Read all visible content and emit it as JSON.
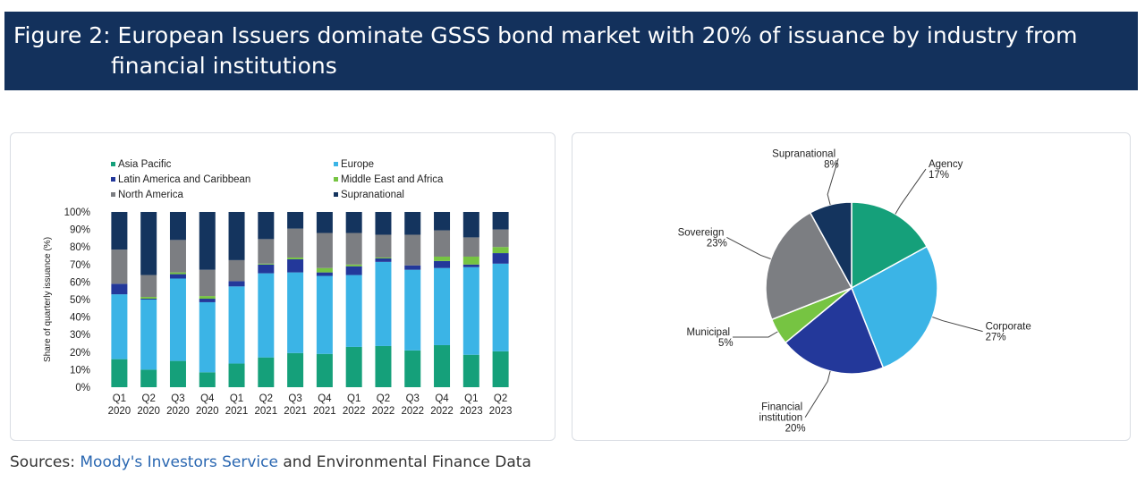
{
  "header": {
    "title_line1": "Figure 2: European Issuers dominate GSSS bond market with 20% of issuance by industry from",
    "title_line2": "financial institutions"
  },
  "sources": {
    "prefix": "Sources: ",
    "link": "Moody's Investors Service",
    "suffix": " and Environmental Finance Data"
  },
  "colors": {
    "asia_pacific": "#15a07a",
    "europe": "#3bb4e6",
    "latin_america": "#23389a",
    "middle_east_africa": "#76c442",
    "north_america": "#7c7e82",
    "supranational": "#14345e",
    "banner": "#13315c"
  },
  "chart_data": [
    {
      "type": "bar",
      "stacked": true,
      "xlabel": "",
      "ylabel": "Share of quarterly issuance (%)",
      "ylim": [
        0,
        100
      ],
      "y_ticks": [
        "0%",
        "10%",
        "20%",
        "30%",
        "40%",
        "50%",
        "60%",
        "70%",
        "80%",
        "90%",
        "100%"
      ],
      "legend_position": "top",
      "categories": [
        [
          "Q1",
          "2020"
        ],
        [
          "Q2",
          "2020"
        ],
        [
          "Q3",
          "2020"
        ],
        [
          "Q4",
          "2020"
        ],
        [
          "Q1",
          "2021"
        ],
        [
          "Q2",
          "2021"
        ],
        [
          "Q3",
          "2021"
        ],
        [
          "Q4",
          "2021"
        ],
        [
          "Q1",
          "2022"
        ],
        [
          "Q2",
          "2022"
        ],
        [
          "Q3",
          "2022"
        ],
        [
          "Q4",
          "2022"
        ],
        [
          "Q1",
          "2023"
        ],
        [
          "Q2",
          "2023"
        ]
      ],
      "series": [
        {
          "name": "Asia Pacific",
          "color": "#15a07a",
          "values": [
            16,
            10,
            15,
            8.5,
            13.5,
            17,
            19.5,
            19,
            23,
            23.5,
            21,
            24,
            18.5,
            20.5
          ]
        },
        {
          "name": "Europe",
          "color": "#3bb4e6",
          "values": [
            37,
            40,
            47,
            40,
            44,
            48,
            46,
            44.5,
            41,
            48,
            46,
            44,
            50,
            50
          ]
        },
        {
          "name": "Latin America and Caribbean",
          "color": "#23389a",
          "values": [
            6,
            0.5,
            2.5,
            2,
            3,
            5,
            7.5,
            2,
            5,
            2,
            2.5,
            4,
            1.5,
            6
          ]
        },
        {
          "name": "Middle East and Africa",
          "color": "#76c442",
          "values": [
            0,
            1,
            1,
            1.5,
            0,
            0.5,
            1,
            2.5,
            1,
            0.5,
            0,
            2.5,
            4.5,
            3.5
          ]
        },
        {
          "name": "North America",
          "color": "#7c7e82",
          "values": [
            19.5,
            12.5,
            18.5,
            15,
            12,
            14,
            16.5,
            20,
            18,
            13,
            17.5,
            15,
            11,
            10
          ]
        },
        {
          "name": "Supranational",
          "color": "#14345e",
          "values": [
            21.5,
            36,
            16,
            33,
            27.5,
            15.5,
            9.5,
            12,
            12,
            13,
            13,
            10.5,
            14.5,
            10
          ]
        }
      ]
    },
    {
      "type": "pie",
      "slices": [
        {
          "name": "Agency",
          "value": 17,
          "label": "17%",
          "color": "#15a07a"
        },
        {
          "name": "Corporate",
          "value": 27,
          "label": "27%",
          "color": "#3bb4e6"
        },
        {
          "name": "Financial institution",
          "name_lines": [
            "Financial",
            "institution"
          ],
          "value": 20,
          "label": "20%",
          "color": "#23389a"
        },
        {
          "name": "Municipal",
          "value": 5,
          "label": "5%",
          "color": "#76c442"
        },
        {
          "name": "Sovereign",
          "value": 23,
          "label": "23%",
          "color": "#7c7e82"
        },
        {
          "name": "Supranational",
          "value": 8,
          "label": "8%",
          "color": "#14345e"
        }
      ]
    }
  ]
}
